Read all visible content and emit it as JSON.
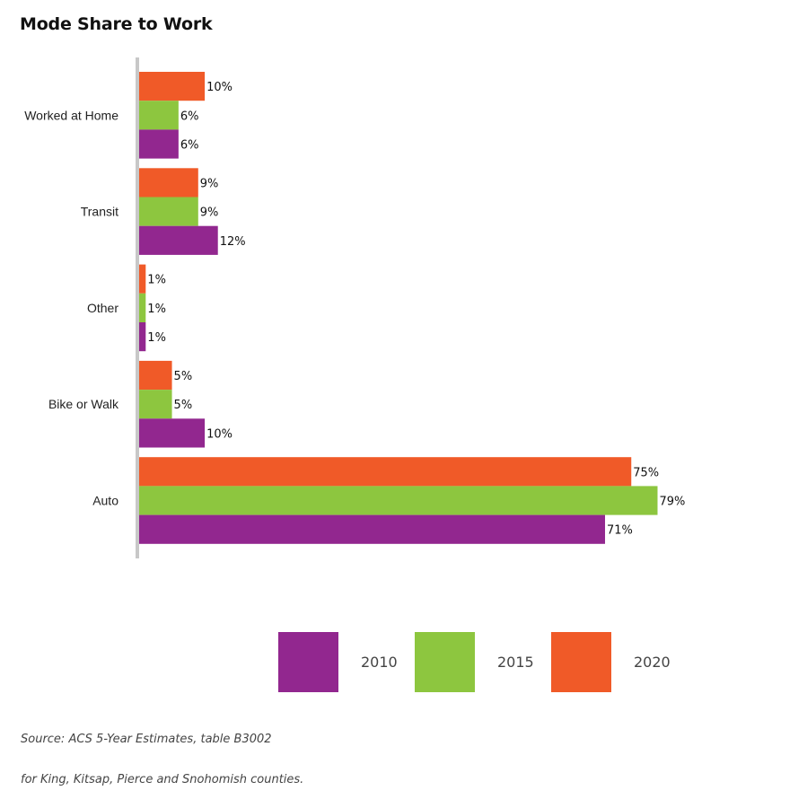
{
  "chart_data": {
    "type": "bar",
    "orientation": "horizontal",
    "title": "Mode Share to Work",
    "categories": [
      "Worked at Home",
      "Transit",
      "Other",
      "Bike or Walk",
      "Auto"
    ],
    "series": [
      {
        "name": "2020",
        "color": "#f05a28",
        "values": [
          10,
          9,
          1,
          5,
          75
        ],
        "labels": [
          "10%",
          "9%",
          "1%",
          "5%",
          "75%"
        ]
      },
      {
        "name": "2015",
        "color": "#8dc63f",
        "values": [
          6,
          9,
          1,
          5,
          79
        ],
        "labels": [
          "6%",
          "9%",
          "1%",
          "5%",
          "79%"
        ]
      },
      {
        "name": "2010",
        "color": "#92278f",
        "values": [
          6,
          12,
          1,
          10,
          71
        ],
        "labels": [
          "6%",
          "12%",
          "1%",
          "10%",
          "71%"
        ]
      }
    ],
    "legend": {
      "placement": "bottom",
      "order": [
        "2010",
        "2015",
        "2020"
      ]
    },
    "axis_color": "#c8c8c8",
    "grid": false
  },
  "source": {
    "line1": "Source: ACS 5-Year Estimates, table B3002",
    "line2": "for King, Kitsap, Pierce and Snohomish counties."
  }
}
